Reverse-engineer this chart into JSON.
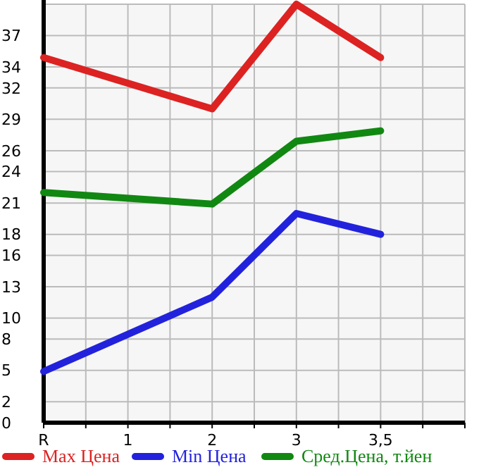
{
  "chart_data": {
    "type": "line",
    "categories": [
      "R",
      "1",
      "2",
      "3",
      "3,5",
      null
    ],
    "series": [
      {
        "name": "Max Цена",
        "color": "#dd2222",
        "values": [
          34.9,
          null,
          30.0,
          40,
          34.9,
          null
        ]
      },
      {
        "name": "Min Цена",
        "color": "#2222dd",
        "values": [
          4.9,
          null,
          12.0,
          20.0,
          18.0,
          null
        ]
      },
      {
        "name": "Сред.Цена, т.йен",
        "color": "#118811",
        "values": [
          22.0,
          null,
          20.9,
          26.9,
          27.9,
          null
        ]
      }
    ],
    "ylim": [
      0,
      40
    ],
    "yticks": [
      0,
      2,
      5,
      8,
      10,
      13,
      16,
      18,
      21,
      24,
      26,
      29,
      32,
      34,
      37,
      {
        "value": 40,
        "label": null
      }
    ],
    "grid": true,
    "legend": "bottom",
    "marker": "none",
    "line_style": "solid"
  }
}
